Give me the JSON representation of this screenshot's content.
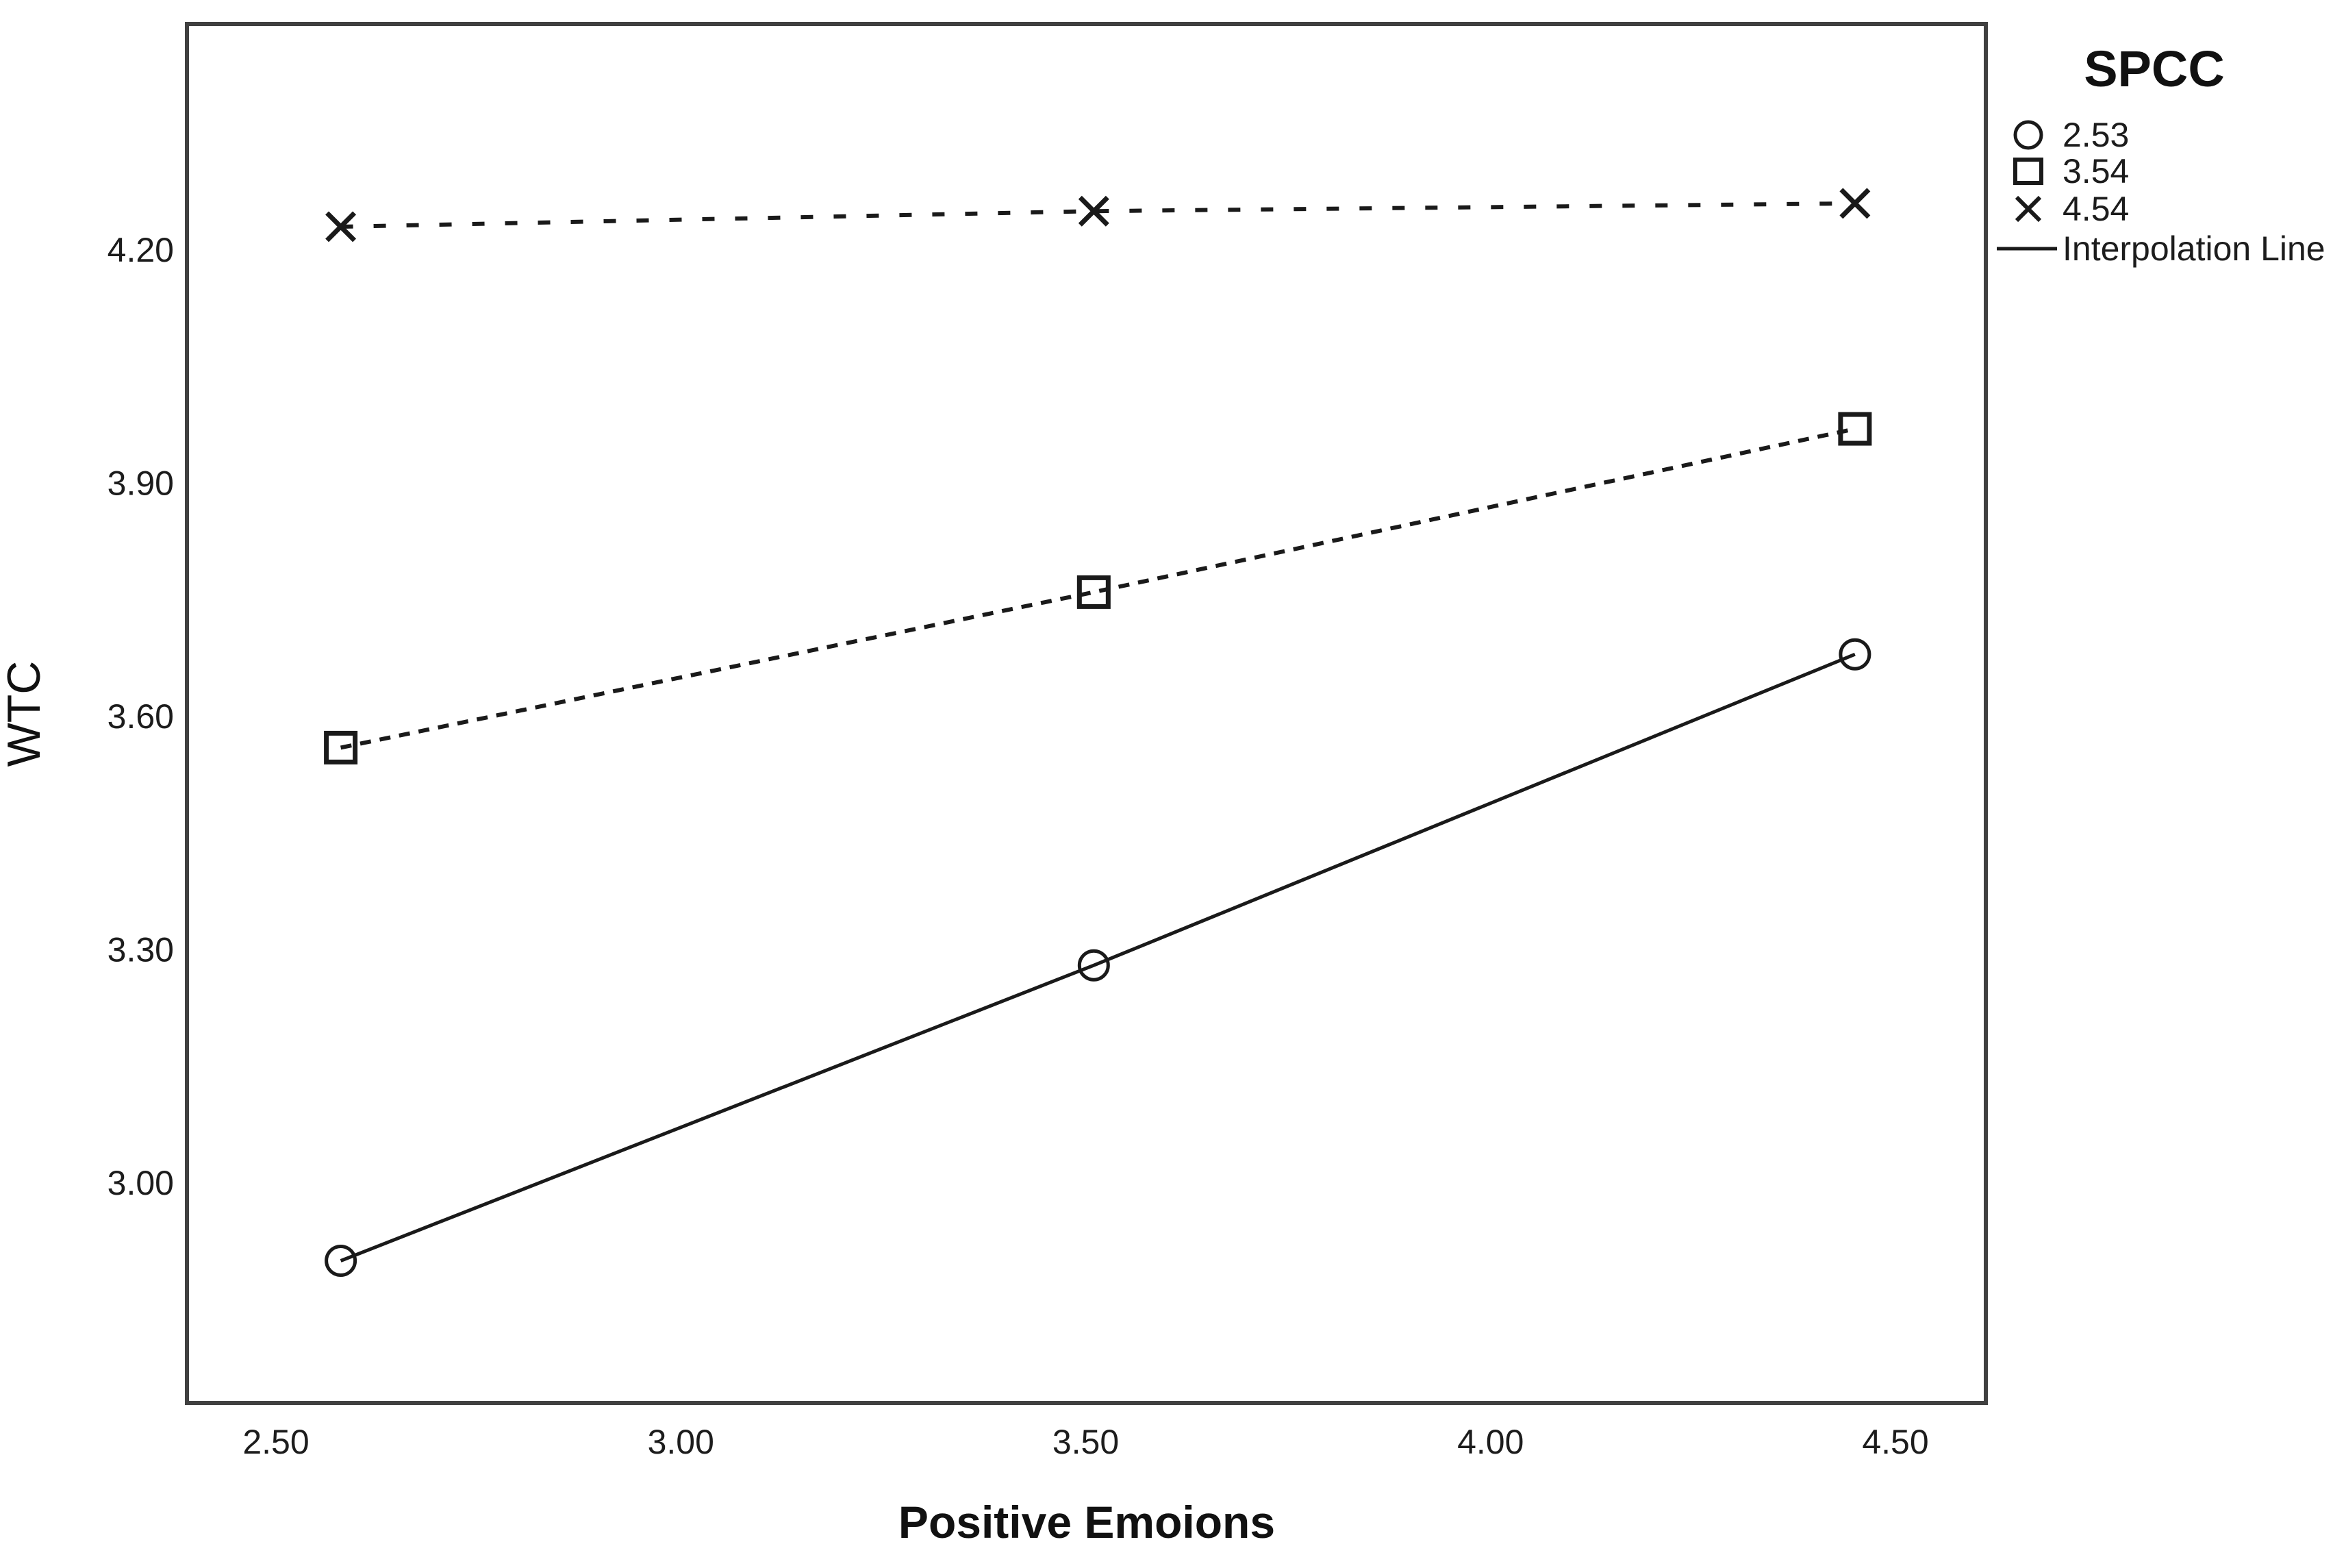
{
  "chart_data": {
    "type": "line",
    "title": "",
    "xlabel": "Positive Emoions",
    "ylabel": "WTC",
    "x_tick_labels": [
      "2.50",
      "3.00",
      "3.50",
      "4.00",
      "4.50"
    ],
    "y_tick_labels": [
      "3.00",
      "3.30",
      "3.60",
      "3.90",
      "4.20"
    ],
    "xlim": [
      2.39,
      4.61
    ],
    "ylim": [
      2.72,
      4.49
    ],
    "grid": false,
    "x": [
      2.58,
      3.51,
      4.45
    ],
    "series": [
      {
        "name": "2.53",
        "marker": "circle",
        "line_style": "solid",
        "values": [
          2.9,
          3.28,
          3.68
        ]
      },
      {
        "name": "3.54",
        "marker": "square",
        "line_style": "dashed",
        "values": [
          3.56,
          3.76,
          3.97
        ]
      },
      {
        "name": "4.54",
        "marker": "x",
        "line_style": "long-dash",
        "values": [
          4.23,
          4.25,
          4.26
        ]
      }
    ],
    "legend": {
      "title": "SPCC",
      "position": "outside-top-right",
      "items": [
        {
          "marker": "circle",
          "label": "2.53"
        },
        {
          "marker": "square",
          "label": "3.54"
        },
        {
          "marker": "x",
          "label": "4.54"
        },
        {
          "marker": "line",
          "label": "Interpolation Line"
        }
      ]
    }
  },
  "colors": {
    "stroke": "#1a1a1a",
    "frame": "#404040",
    "text": "#111111",
    "background": "#ffffff"
  }
}
